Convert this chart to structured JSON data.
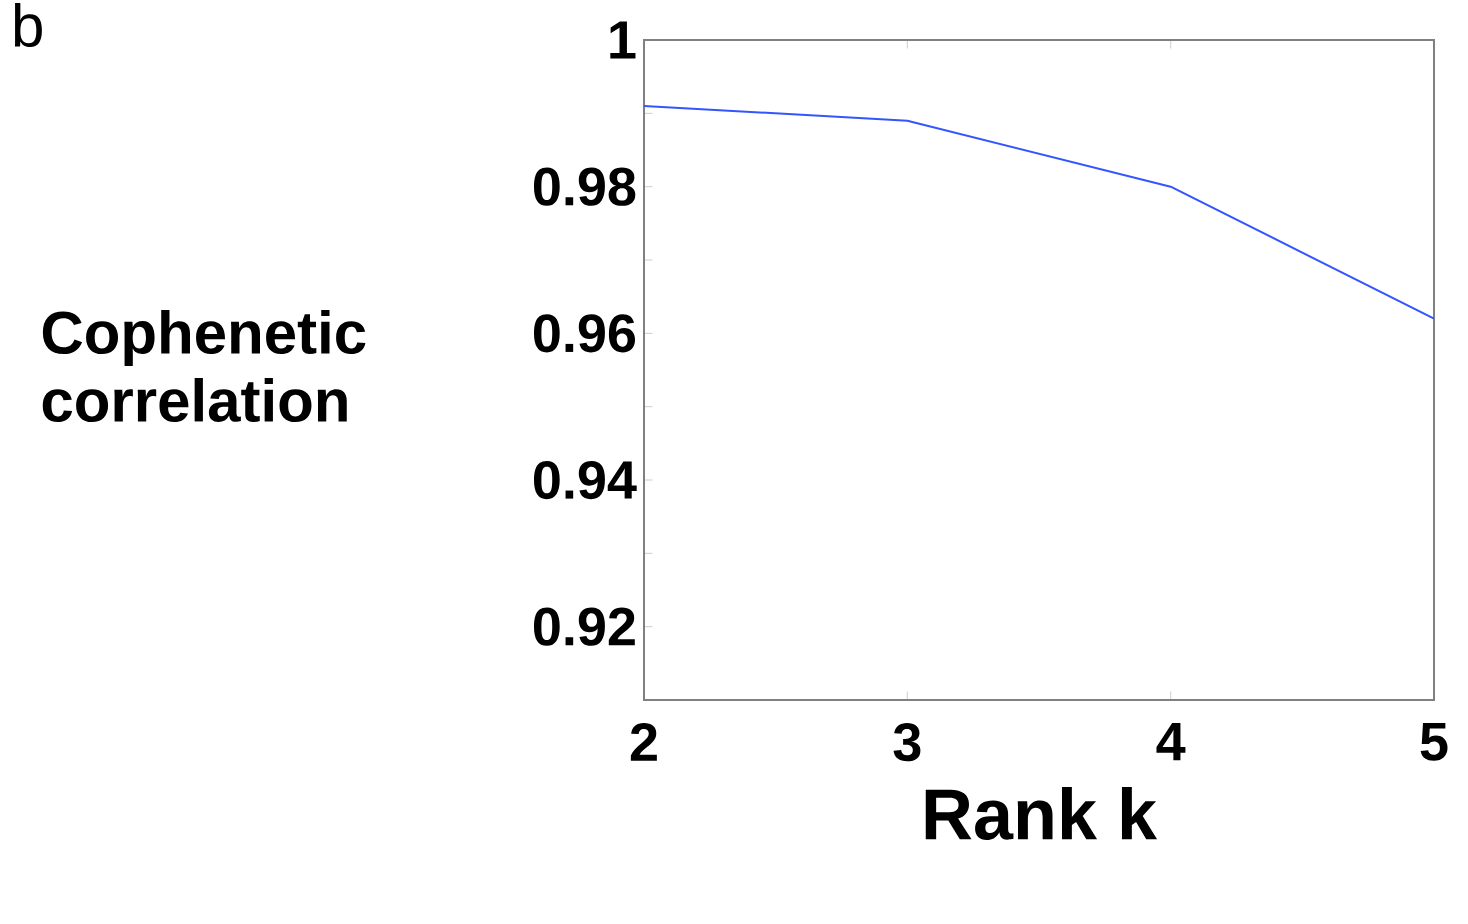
{
  "chart_data": {
    "type": "line",
    "annotations": [
      "b"
    ],
    "xlabel": "Rank k",
    "ylabel": "Cophenetic correlation",
    "x": [
      2,
      3,
      4,
      5
    ],
    "series": [
      {
        "color": "#3355ff",
        "values": [
          0.991,
          0.989,
          0.98,
          0.962
        ]
      }
    ],
    "xlim": [
      2,
      5
    ],
    "xticks": [
      2,
      3,
      4,
      5
    ],
    "ylim": [
      0.91,
      1.0
    ],
    "yticks": [
      0.92,
      {
        "value": 0.93,
        "label": null
      },
      0.94,
      {
        "value": 0.95,
        "label": null
      },
      0.96,
      {
        "value": 0.97,
        "label": null
      },
      0.98,
      {
        "value": 0.99,
        "label": null
      },
      1
    ],
    "grid": false,
    "marker": "none",
    "line_style": "solid"
  }
}
